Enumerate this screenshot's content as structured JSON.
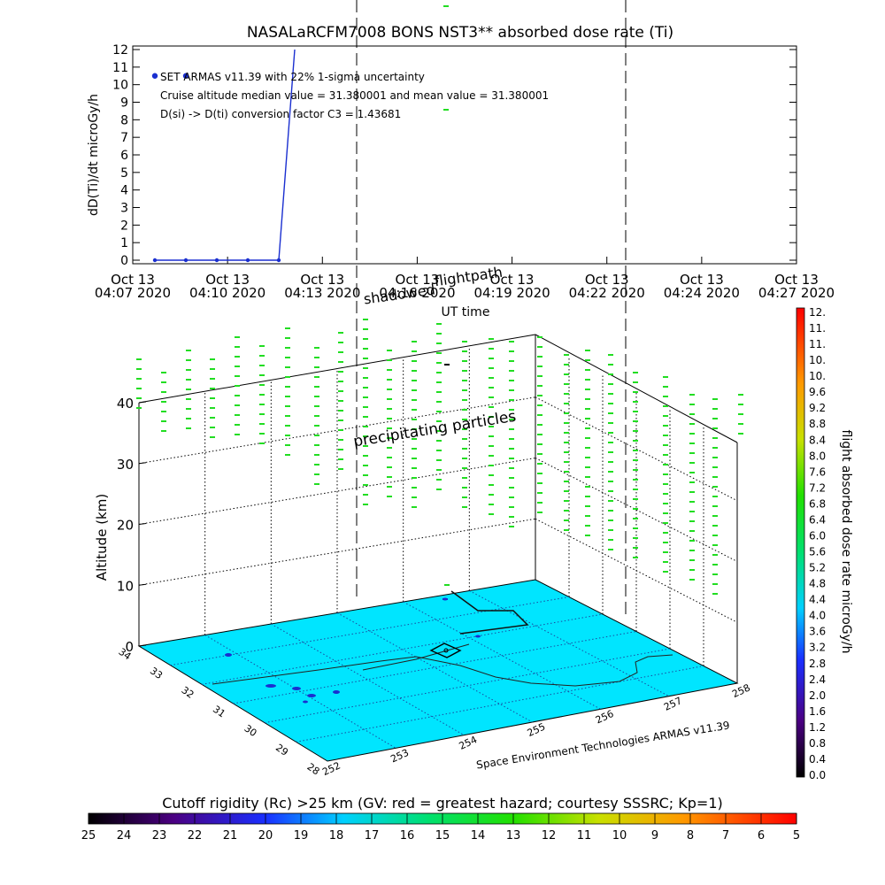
{
  "title": "NASALaRCFM7008  BONS NST3** absorbed dose rate (Ti)",
  "top_chart": {
    "type": "line",
    "ylabel": "dD(Ti)/dt microGy/h",
    "xlabel": "UT time",
    "ylim": [
      0,
      12
    ],
    "yticks": [
      "0",
      "1",
      "2",
      "3",
      "4",
      "5",
      "6",
      "7",
      "8",
      "9",
      "10",
      "11",
      "12"
    ],
    "xtick_top": [
      "Oct 13",
      "Oct 13",
      "Oct 13",
      "Oct 13",
      "Oct 13",
      "Oct 13",
      "Oct 13",
      "Oct 13"
    ],
    "xtick_bottom": [
      "04:07 2020",
      "04:10 2020",
      "04:13 2020",
      "04:16 2020",
      "04:19 2020",
      "04:22 2020",
      "04:24 2020",
      "04:27 2020"
    ],
    "annotations": [
      "SET ARMAS v11.39 with 22% 1-sigma uncertainty",
      "Cruise altitude median value = 31.380001 and mean value = 31.380001",
      "D(si) -> D(ti) conversion factor C3 = 1.43681"
    ],
    "marker_labels": [
      "shadowed",
      "flightpath"
    ],
    "series_color": "#1a2fd0"
  },
  "chart_data": [
    {
      "type": "line",
      "x": [
        "04:07",
        "04:09",
        "04:10",
        "04:11",
        "04:12",
        "04:13"
      ],
      "values": [
        0,
        0,
        0,
        0,
        0,
        12
      ],
      "points": [
        {
          "x": "04:07",
          "y": 10.5
        },
        {
          "x": "04:09",
          "y": 10.5
        },
        {
          "x": "04:07",
          "y": 0
        },
        {
          "x": "04:09",
          "y": 0
        },
        {
          "x": "04:10",
          "y": 0
        },
        {
          "x": "04:11",
          "y": 0
        },
        {
          "x": "04:12",
          "y": 0
        }
      ],
      "ylim": [
        0,
        12
      ],
      "xlabel": "UT time",
      "ylabel": "dD(Ti)/dt microGy/h"
    }
  ],
  "panel3d": {
    "altitude_label": "Altitude (km)",
    "altitude_ticks": [
      "0",
      "10",
      "20",
      "30",
      "40"
    ],
    "lat_ticks": [
      "34",
      "33",
      "32",
      "31",
      "30",
      "29",
      "28"
    ],
    "lon_ticks": [
      "252",
      "253",
      "254",
      "255",
      "256",
      "257",
      "258"
    ],
    "credit": "Space Environment Technologies ARMAS v11.39",
    "overlay_text": "precipitating particles",
    "ground_color": "#00e5ff",
    "particle_color": "#22dd22"
  },
  "right_colorbar": {
    "label": "flight absorbed dose rate microGy/h",
    "ticks": [
      "12.",
      "11.",
      "11.",
      "10.",
      "10.",
      "9.6",
      "9.2",
      "8.8",
      "8.4",
      "8.0",
      "7.6",
      "7.2",
      "6.8",
      "6.4",
      "6.0",
      "5.6",
      "5.2",
      "4.8",
      "4.4",
      "4.0",
      "3.6",
      "3.2",
      "2.8",
      "2.4",
      "2.0",
      "1.6",
      "1.2",
      "0.8",
      "0.4",
      "0.0"
    ]
  },
  "bottom_colorbar": {
    "label": "Cutoff rigidity (Rc) >25 km (GV: red = greatest hazard; courtesy SSSRC; Kp=1)",
    "ticks": [
      "25",
      "24",
      "23",
      "22",
      "21",
      "20",
      "19",
      "18",
      "17",
      "16",
      "15",
      "14",
      "13",
      "12",
      "11",
      "10",
      "9",
      "8",
      "7",
      "6",
      "5"
    ]
  }
}
